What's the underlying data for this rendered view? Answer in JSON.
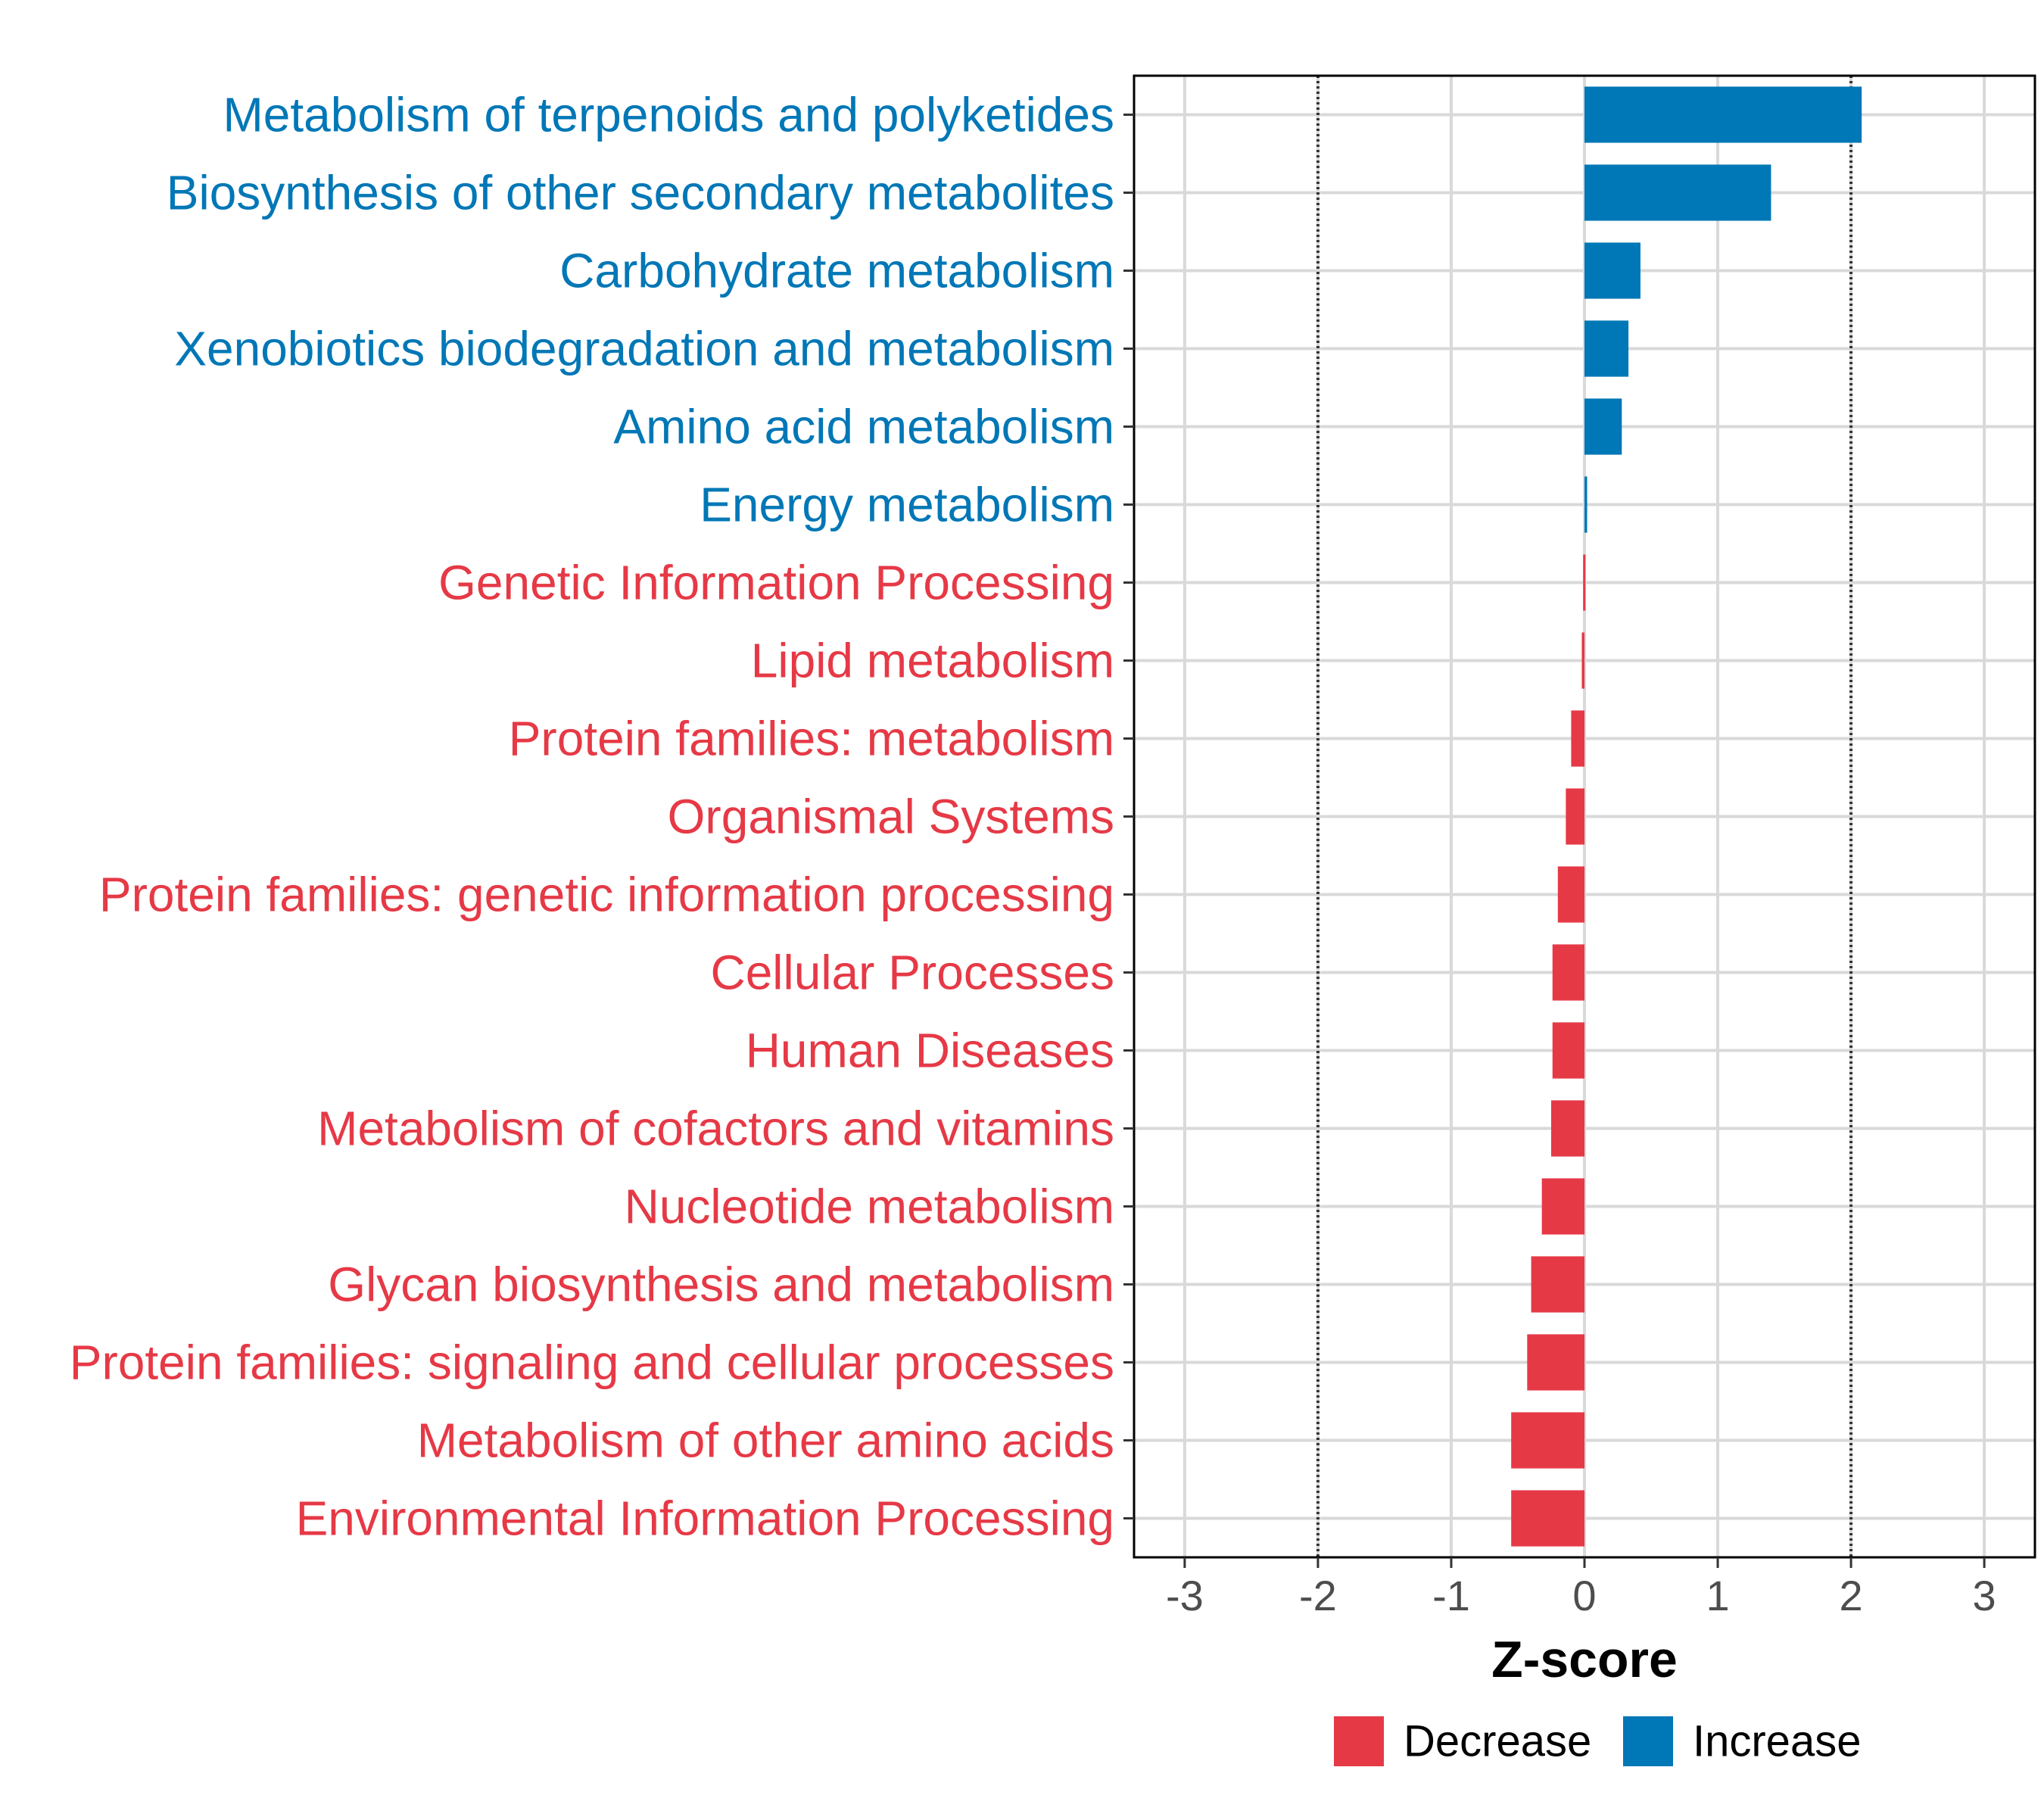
{
  "chart_data": {
    "type": "bar",
    "orientation": "horizontal",
    "categories": [
      "Metabolism of terpenoids and polyketides",
      "Biosynthesis of other secondary metabolites",
      "Carbohydrate metabolism",
      "Xenobiotics biodegradation and metabolism",
      "Amino acid metabolism",
      "Energy metabolism",
      "Genetic Information Processing",
      "Lipid metabolism",
      "Protein families: metabolism",
      "Organismal Systems",
      "Protein families: genetic information processing",
      "Cellular Processes",
      "Human Diseases",
      "Metabolism of cofactors and vitamins",
      "Nucleotide metabolism",
      "Glycan biosynthesis and metabolism",
      "Protein families: signaling and cellular processes",
      "Metabolism of other amino acids",
      "Environmental Information Processing"
    ],
    "values": [
      2.08,
      1.4,
      0.42,
      0.33,
      0.28,
      0.02,
      -0.01,
      -0.02,
      -0.1,
      -0.14,
      -0.2,
      -0.24,
      -0.24,
      -0.25,
      -0.32,
      -0.4,
      -0.43,
      -0.55,
      -0.55
    ],
    "groups": [
      "Increase",
      "Increase",
      "Increase",
      "Increase",
      "Increase",
      "Increase",
      "Decrease",
      "Decrease",
      "Decrease",
      "Decrease",
      "Decrease",
      "Decrease",
      "Decrease",
      "Decrease",
      "Decrease",
      "Decrease",
      "Decrease",
      "Decrease",
      "Decrease"
    ],
    "xlabel": "Z-score",
    "xlim": [
      -3.38,
      3.38
    ],
    "xticks": [
      -3,
      -2,
      -1,
      0,
      1,
      2,
      3
    ],
    "xtick_labels": [
      "-3",
      "-2",
      "-1",
      "0",
      "1",
      "2",
      "3"
    ],
    "reference_lines": [
      -2,
      2
    ],
    "grid": true,
    "legend": {
      "position": "bottom",
      "entries": [
        {
          "label": "Decrease",
          "color": "#e63946"
        },
        {
          "label": "Increase",
          "color": "#0077b6"
        }
      ]
    },
    "colors": {
      "Decrease": "#e63946",
      "Increase": "#0077b6",
      "grid": "#d9d9d9",
      "axis": "#000000"
    }
  }
}
